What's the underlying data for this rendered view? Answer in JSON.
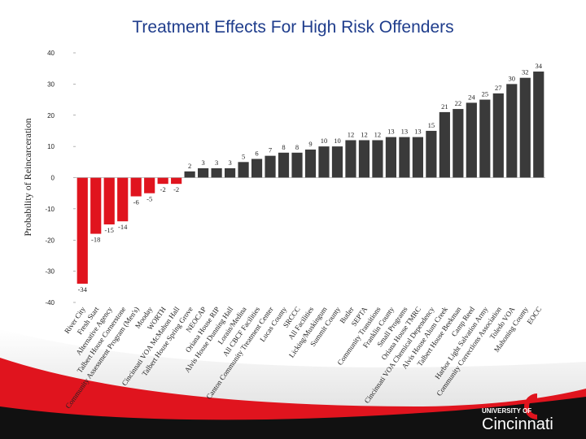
{
  "chart_data": {
    "type": "bar",
    "title": "Treatment Effects For High Risk Offenders",
    "y_label": "Probability of Reincarceration",
    "categories": [
      "River City",
      "Fresh Start",
      "Alternative Agency",
      "Talbert House Cornerstone",
      "Community Assessment Program (Men's)",
      "Mooday",
      "WORTH",
      "Cincinnati VOA McMahon Hall",
      "Talbert House Spring Grove",
      "NEOCAP",
      "Oriana House RIP",
      "Alvis House Dunning Hall",
      "Lorain/Medina",
      "All CBCF Facilities",
      "Canton Community Treatment Center",
      "Lucas County",
      "SRCCC",
      "All Facilities",
      "Licking/Muskingum",
      "Summit County",
      "Butler",
      "SEPTA",
      "Community Transitions",
      "Franklin County",
      "Small Programs",
      "Oriana House TMRC",
      "Cincinnati VOA Chemical Dependency",
      "Alvis House Alum Creek",
      "Talbert House Beekman",
      "Camp Reed",
      "Harbor Light Salvation Army",
      "Community Corrections Association",
      "Toledo VOA",
      "Mahoning County",
      "EOCC"
    ],
    "values": [
      -34,
      -18,
      -15,
      -14,
      -6,
      -5,
      -2,
      -2,
      2,
      3,
      3,
      3,
      5,
      6,
      7,
      8,
      8,
      9,
      10,
      10,
      12,
      12,
      12,
      13,
      13,
      13,
      15,
      21,
      22,
      24,
      25,
      27,
      30,
      32,
      34
    ],
    "negative_color": "#e0141e",
    "positive_color": "#3a3a3a",
    "ylim": [
      -40,
      40
    ],
    "yticks": [
      -40,
      -30,
      -20,
      -10,
      0,
      10,
      20,
      30,
      40
    ]
  },
  "footer": {
    "university_of": "UNIVERSITY OF",
    "name": "Cincinnati"
  }
}
